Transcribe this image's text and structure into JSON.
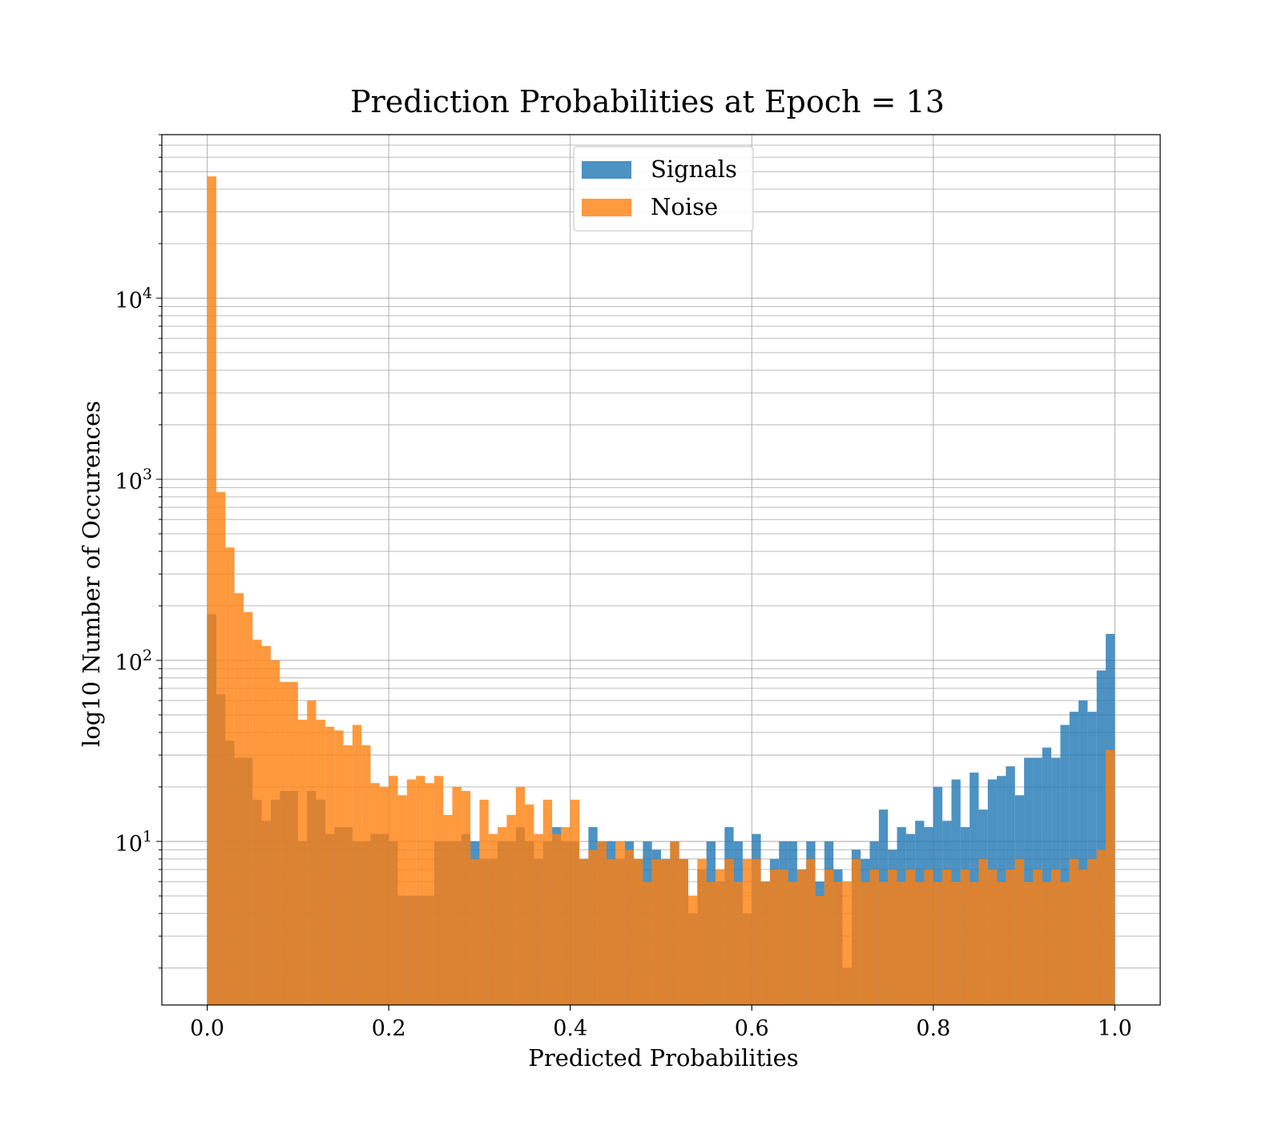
{
  "chart_data": {
    "type": "bar",
    "subtype": "overlaid-histogram",
    "title": "Prediction Probabilities at Epoch = 13",
    "xlabel": "Predicted Probabilities",
    "ylabel": "log10 Number of Occurences",
    "xlim": [
      -0.05,
      1.05
    ],
    "ylim": [
      1.25,
      80000
    ],
    "yscale": "log",
    "grid": true,
    "legend_position": "top-center",
    "x_ticks": [
      "0.0",
      "0.2",
      "0.4",
      "0.6",
      "0.8",
      "1.0"
    ],
    "y_ticks": [
      {
        "base": "10",
        "exp": "1"
      },
      {
        "base": "10",
        "exp": "2"
      },
      {
        "base": "10",
        "exp": "3"
      },
      {
        "base": "10",
        "exp": "4"
      }
    ],
    "bin_edges_range": [
      0.0,
      1.0
    ],
    "bin_count": 100,
    "series": [
      {
        "name": "Signals",
        "color": "#1f77b4",
        "alpha": 0.8,
        "values": [
          180,
          65,
          36,
          29,
          29,
          17,
          13,
          17,
          19,
          19,
          10,
          19,
          17,
          11,
          12,
          12,
          10,
          10,
          11,
          11,
          10,
          5,
          5,
          5,
          5,
          10,
          10,
          10,
          11,
          10,
          8,
          8,
          10,
          10,
          12,
          10,
          8,
          10,
          12,
          10,
          10,
          8,
          12,
          10,
          10,
          8,
          10,
          8,
          10,
          9,
          8,
          10,
          8,
          4,
          7,
          10,
          6,
          12,
          10,
          4,
          11,
          6,
          8,
          10,
          10,
          7,
          10,
          6,
          10,
          7,
          2,
          9,
          8,
          10,
          15,
          9,
          12,
          11,
          13,
          12,
          20,
          13,
          22,
          12,
          24,
          15,
          22,
          23,
          26,
          18,
          29,
          29,
          33,
          29,
          44,
          52,
          60,
          52,
          88,
          140
        ]
      },
      {
        "name": "Noise",
        "color": "#ff7f0e",
        "alpha": 0.8,
        "values": [
          47000,
          850,
          420,
          235,
          185,
          130,
          120,
          100,
          76,
          76,
          47,
          60,
          47,
          43,
          41,
          34,
          44,
          34,
          21,
          20,
          23,
          18,
          22,
          23,
          21,
          23,
          14,
          20,
          19,
          8,
          17,
          11,
          12,
          14,
          20,
          16,
          11,
          17,
          11,
          12,
          17,
          8,
          9,
          10,
          8,
          10,
          9,
          8,
          6,
          8,
          8,
          10,
          8,
          5,
          8,
          6,
          7,
          8,
          6,
          8,
          8,
          6,
          7,
          7,
          6,
          7,
          8,
          5,
          7,
          6,
          6,
          8,
          6,
          7,
          6,
          7,
          6,
          7,
          6,
          7,
          6,
          7,
          6,
          7,
          6,
          8,
          7,
          6,
          7,
          8,
          6,
          7,
          6,
          7,
          6,
          8,
          7,
          8,
          9,
          32
        ]
      }
    ]
  }
}
